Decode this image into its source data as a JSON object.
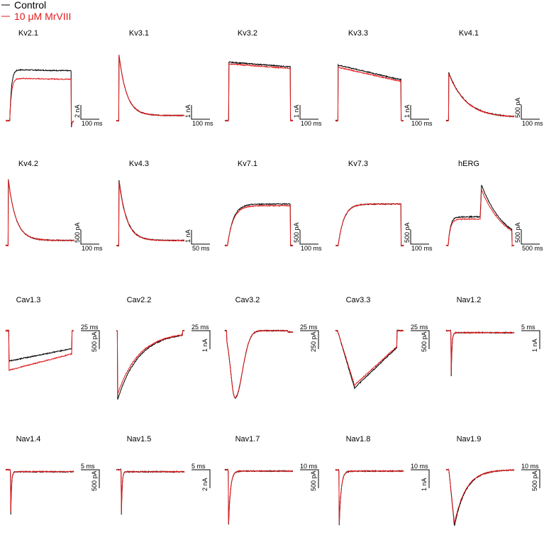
{
  "chart_data": {
    "type": "line",
    "title": "",
    "legend": {
      "placement": "top-left",
      "entries": [
        {
          "label": "Control",
          "color": "#000000"
        },
        {
          "label": "10 μM MrVIII",
          "color": "#e31a1c"
        }
      ]
    },
    "panels": [
      {
        "title": "Kv2.1",
        "shape": "step_sag",
        "scale": {
          "time": "100 ms",
          "amp": "2 nA"
        },
        "control_level": 1.0,
        "drug_level": 0.83
      },
      {
        "title": "Kv3.1",
        "shape": "decay_fast",
        "scale": {
          "time": "100 ms",
          "amp": "1 nA"
        },
        "control_level": 1.0,
        "drug_level": 1.0
      },
      {
        "title": "Kv3.2",
        "shape": "plateau_slope",
        "scale": {
          "time": "100 ms",
          "amp": "1 nA"
        },
        "control_level": 1.0,
        "drug_level": 0.97
      },
      {
        "title": "Kv3.3",
        "shape": "slope_down",
        "scale": {
          "time": "100 ms",
          "amp": "1 nA"
        },
        "control_level": 1.0,
        "drug_level": 0.96
      },
      {
        "title": "Kv4.1",
        "shape": "decay_slow",
        "scale": {
          "time": "100 ms",
          "amp": "500 pA"
        },
        "control_level": 1.0,
        "drug_level": 0.98
      },
      {
        "title": "Kv4.2",
        "shape": "decay_fast",
        "scale": {
          "time": "100 ms",
          "amp": "500 pA"
        },
        "control_level": 1.0,
        "drug_level": 1.0
      },
      {
        "title": "Kv4.3",
        "shape": "decay_fast",
        "scale": {
          "time": "50 ms",
          "amp": "1 nA"
        },
        "control_level": 1.0,
        "drug_level": 0.97
      },
      {
        "title": "Kv7.1",
        "shape": "slow_rise",
        "scale": {
          "time": "100 ms",
          "amp": "500 pA"
        },
        "control_level": 1.0,
        "drug_level": 0.96
      },
      {
        "title": "Kv7.3",
        "shape": "slow_rise",
        "scale": {
          "time": "100 ms",
          "amp": "500 pA"
        },
        "control_level": 1.0,
        "drug_level": 1.0
      },
      {
        "title": "hERG",
        "shape": "herg",
        "scale": {
          "time": "500 ms",
          "amp": "500 pA"
        },
        "control_level": 1.0,
        "drug_level": 0.92
      },
      {
        "title": "Cav1.3",
        "shape": "inward_sustained",
        "scale": {
          "time": "25 ms",
          "amp": "500 pA"
        },
        "control_level": 1.0,
        "drug_level": 1.3
      },
      {
        "title": "Cav2.2",
        "shape": "inward_slow_recover",
        "scale": {
          "time": "25 ms",
          "amp": "1 nA"
        },
        "control_level": 1.0,
        "drug_level": 0.92
      },
      {
        "title": "Cav3.2",
        "shape": "inward_peak_recover",
        "scale": {
          "time": "25 ms",
          "amp": "250 pA"
        },
        "control_level": 1.0,
        "drug_level": 0.99
      },
      {
        "title": "Cav3.3",
        "shape": "inward_v",
        "scale": {
          "time": "25 ms",
          "amp": "500 pA"
        },
        "control_level": 1.0,
        "drug_level": 0.95
      },
      {
        "title": "Nav1.2",
        "shape": "na_spike",
        "scale": {
          "time": "5 ms",
          "amp": "1 nA"
        },
        "control_level": 1.0,
        "drug_level": 0.96
      },
      {
        "title": "Nav1.4",
        "shape": "na_spike",
        "scale": {
          "time": "5 ms",
          "amp": "500 pA"
        },
        "control_level": 1.0,
        "drug_level": 0.93
      },
      {
        "title": "Nav1.5",
        "shape": "na_spike",
        "scale": {
          "time": "5 ms",
          "amp": "2 nA"
        },
        "control_level": 1.0,
        "drug_level": 0.97
      },
      {
        "title": "Nav1.7",
        "shape": "na_spike_slow",
        "scale": {
          "time": "10 ms",
          "amp": "500 pA"
        },
        "control_level": 1.0,
        "drug_level": 0.97
      },
      {
        "title": "Nav1.8",
        "shape": "na_spike_slow",
        "scale": {
          "time": "10 ms",
          "amp": "1 nA"
        },
        "control_level": 1.0,
        "drug_level": 0.98
      },
      {
        "title": "Nav1.9",
        "shape": "na_broad",
        "scale": {
          "time": "10 ms",
          "amp": "500 pA"
        },
        "control_level": 1.0,
        "drug_level": 0.95
      }
    ]
  }
}
